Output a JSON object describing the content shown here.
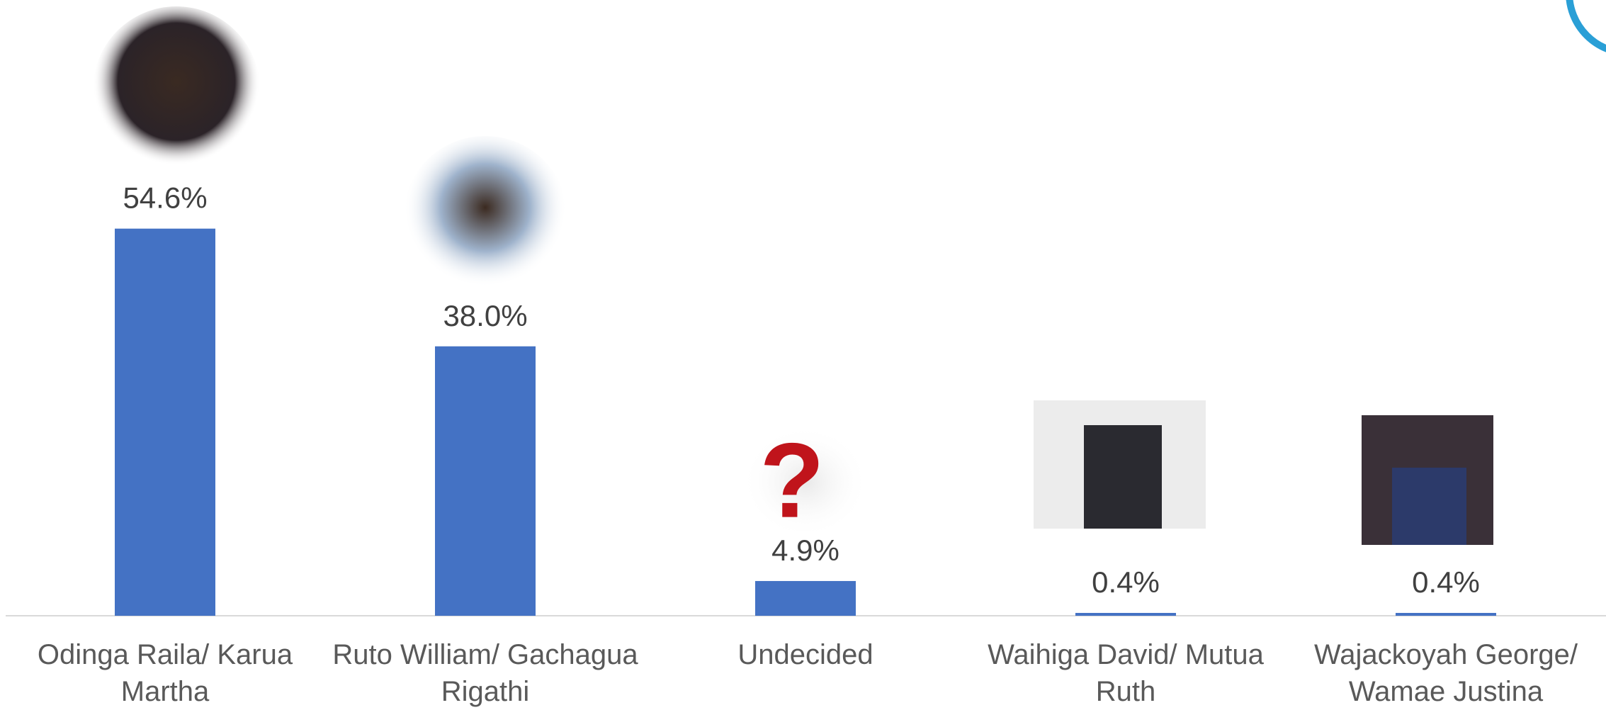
{
  "chart_data": {
    "type": "bar",
    "categories": [
      "Odinga Raila/ Karua Martha",
      "Ruto William/ Gachagua Rigathi",
      "Undecided",
      "Waihiga David/ Mutua Ruth",
      "Wajackoyah George/ Wamae Justina"
    ],
    "values": [
      54.6,
      38.0,
      4.9,
      0.4,
      0.4
    ],
    "value_labels": [
      "54.6%",
      "38.0%",
      "4.9%",
      "0.4%",
      "0.4%"
    ],
    "color": "#4472c4"
  }
}
